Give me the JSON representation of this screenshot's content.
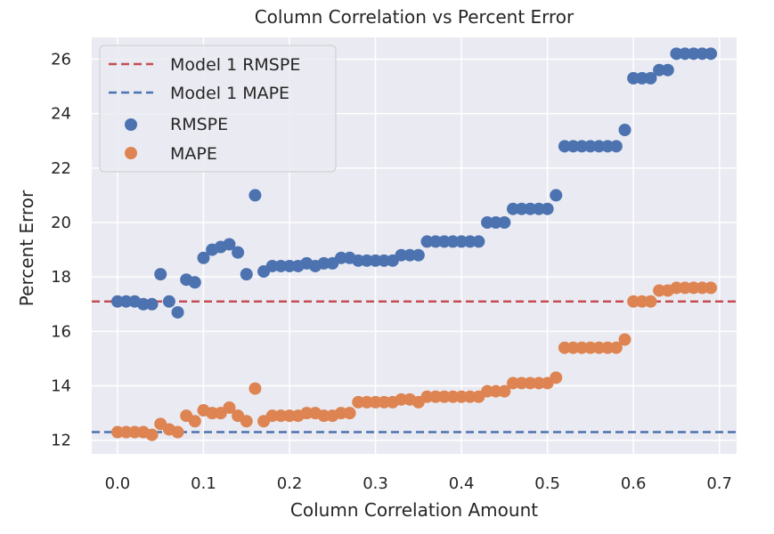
{
  "chart_data": {
    "type": "scatter",
    "title": "Column Correlation vs Percent Error",
    "xlabel": "Column Correlation Amount",
    "ylabel": "Percent Error",
    "xlim": [
      -0.03,
      0.72
    ],
    "ylim": [
      11.5,
      26.8
    ],
    "xticks": [
      0.0,
      0.1,
      0.2,
      0.3,
      0.4,
      0.5,
      0.6,
      0.7
    ],
    "xtick_labels": [
      "0.0",
      "0.1",
      "0.2",
      "0.3",
      "0.4",
      "0.5",
      "0.6",
      "0.7"
    ],
    "yticks": [
      12,
      14,
      16,
      18,
      20,
      22,
      24,
      26
    ],
    "ytick_labels": [
      "12",
      "14",
      "16",
      "18",
      "20",
      "22",
      "24",
      "26"
    ],
    "grid": true,
    "legend_position": "top-left",
    "background_color": "#eaeaf2",
    "grid_color": "#ffffff",
    "reference_lines": [
      {
        "name": "Model 1 RMSPE",
        "y": 17.1,
        "color": "#c44e52",
        "style": "dashed"
      },
      {
        "name": "Model 1 MAPE",
        "y": 12.3,
        "color": "#4c72b0",
        "style": "dashed"
      }
    ],
    "series": [
      {
        "name": "RMSPE",
        "color": "#4c72b0",
        "x": [
          0.0,
          0.01,
          0.02,
          0.03,
          0.04,
          0.05,
          0.06,
          0.07,
          0.08,
          0.09,
          0.1,
          0.11,
          0.12,
          0.13,
          0.14,
          0.15,
          0.16,
          0.17,
          0.18,
          0.19,
          0.2,
          0.21,
          0.22,
          0.23,
          0.24,
          0.25,
          0.26,
          0.27,
          0.28,
          0.29,
          0.3,
          0.31,
          0.32,
          0.33,
          0.34,
          0.35,
          0.36,
          0.37,
          0.38,
          0.39,
          0.4,
          0.41,
          0.42,
          0.43,
          0.44,
          0.45,
          0.46,
          0.47,
          0.48,
          0.49,
          0.5,
          0.51,
          0.52,
          0.53,
          0.54,
          0.55,
          0.56,
          0.57,
          0.58,
          0.59,
          0.6,
          0.61,
          0.62,
          0.63,
          0.64,
          0.65,
          0.66,
          0.67,
          0.68,
          0.69
        ],
        "y": [
          17.1,
          17.1,
          17.1,
          17.0,
          17.0,
          18.1,
          17.1,
          16.7,
          17.9,
          17.8,
          18.7,
          19.0,
          19.1,
          19.2,
          18.9,
          18.1,
          21.0,
          18.2,
          18.4,
          18.4,
          18.4,
          18.4,
          18.5,
          18.4,
          18.5,
          18.5,
          18.7,
          18.7,
          18.6,
          18.6,
          18.6,
          18.6,
          18.6,
          18.8,
          18.8,
          18.8,
          19.3,
          19.3,
          19.3,
          19.3,
          19.3,
          19.3,
          19.3,
          20.0,
          20.0,
          20.0,
          20.5,
          20.5,
          20.5,
          20.5,
          20.5,
          21.0,
          22.8,
          22.8,
          22.8,
          22.8,
          22.8,
          22.8,
          22.8,
          23.4,
          25.3,
          25.3,
          25.3,
          25.6,
          25.6,
          26.2,
          26.2,
          26.2,
          26.2,
          26.2
        ]
      },
      {
        "name": "MAPE",
        "color": "#dd8452",
        "x": [
          0.0,
          0.01,
          0.02,
          0.03,
          0.04,
          0.05,
          0.06,
          0.07,
          0.08,
          0.09,
          0.1,
          0.11,
          0.12,
          0.13,
          0.14,
          0.15,
          0.16,
          0.17,
          0.18,
          0.19,
          0.2,
          0.21,
          0.22,
          0.23,
          0.24,
          0.25,
          0.26,
          0.27,
          0.28,
          0.29,
          0.3,
          0.31,
          0.32,
          0.33,
          0.34,
          0.35,
          0.36,
          0.37,
          0.38,
          0.39,
          0.4,
          0.41,
          0.42,
          0.43,
          0.44,
          0.45,
          0.46,
          0.47,
          0.48,
          0.49,
          0.5,
          0.51,
          0.52,
          0.53,
          0.54,
          0.55,
          0.56,
          0.57,
          0.58,
          0.59,
          0.6,
          0.61,
          0.62,
          0.63,
          0.64,
          0.65,
          0.66,
          0.67,
          0.68,
          0.69
        ],
        "y": [
          12.3,
          12.3,
          12.3,
          12.3,
          12.2,
          12.6,
          12.4,
          12.3,
          12.9,
          12.7,
          13.1,
          13.0,
          13.0,
          13.2,
          12.9,
          12.7,
          13.9,
          12.7,
          12.9,
          12.9,
          12.9,
          12.9,
          13.0,
          13.0,
          12.9,
          12.9,
          13.0,
          13.0,
          13.4,
          13.4,
          13.4,
          13.4,
          13.4,
          13.5,
          13.5,
          13.4,
          13.6,
          13.6,
          13.6,
          13.6,
          13.6,
          13.6,
          13.6,
          13.8,
          13.8,
          13.8,
          14.1,
          14.1,
          14.1,
          14.1,
          14.1,
          14.3,
          15.4,
          15.4,
          15.4,
          15.4,
          15.4,
          15.4,
          15.4,
          15.7,
          17.1,
          17.1,
          17.1,
          17.5,
          17.5,
          17.6,
          17.6,
          17.6,
          17.6,
          17.6
        ]
      }
    ]
  }
}
